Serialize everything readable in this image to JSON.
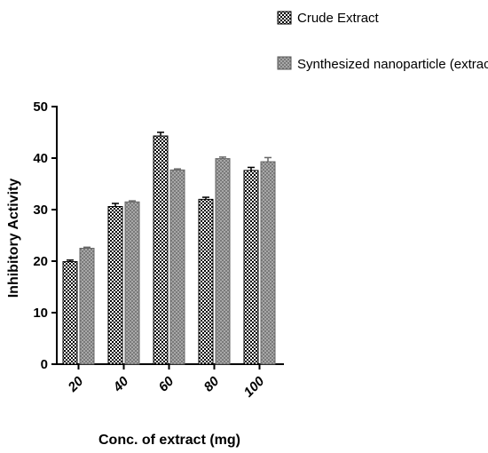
{
  "chart_data": {
    "type": "bar",
    "title": "",
    "xlabel": "Conc. of extract (mg)",
    "ylabel": "Inhibitory Activity",
    "categories": [
      "20",
      "40",
      "60",
      "80",
      "100"
    ],
    "ylim": [
      0,
      50
    ],
    "yticks": [
      "0",
      "10",
      "20",
      "30",
      "40",
      "50"
    ],
    "grid": false,
    "legend_position": "top-right",
    "series": [
      {
        "name": "Crude Extract",
        "values": [
          19.9,
          30.6,
          44.3,
          32.0,
          37.6
        ],
        "errors": [
          0.3,
          0.6,
          0.7,
          0.4,
          0.6
        ],
        "color": "#1a1a1a",
        "pattern": "black-checker"
      },
      {
        "name": "Synthesized nanoparticle (extract)",
        "values": [
          22.5,
          31.5,
          37.7,
          39.9,
          39.3
        ],
        "errors": [
          0.2,
          0.2,
          0.2,
          0.3,
          0.8
        ],
        "color": "#888888",
        "pattern": "gray-checker"
      }
    ]
  }
}
